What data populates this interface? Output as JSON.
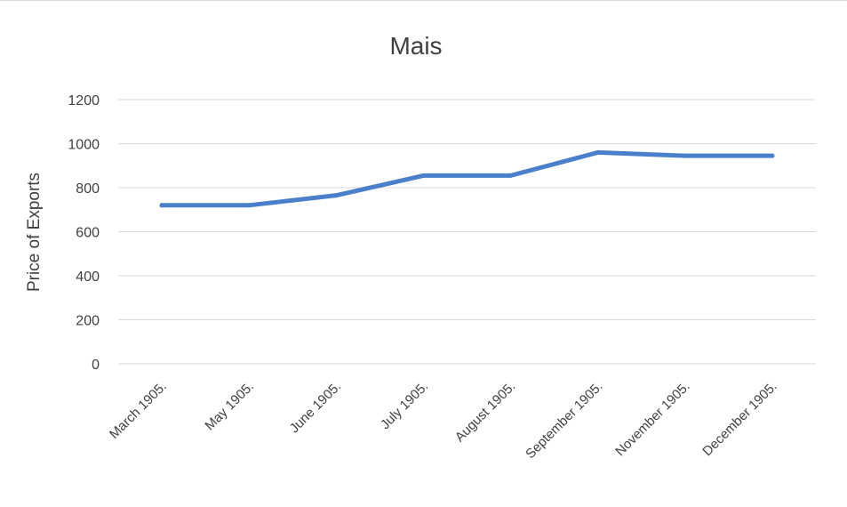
{
  "chart_data": {
    "type": "line",
    "title": "Mais",
    "ylabel": "Price of Exports",
    "xlabel": "",
    "categories": [
      "March 1905.",
      "May 1905.",
      "June 1905.",
      "July 1905.",
      "August 1905.",
      "September 1905.",
      "November 1905.",
      "December 1905."
    ],
    "series": [
      {
        "values": [
          720,
          720,
          765,
          855,
          855,
          960,
          945,
          945
        ],
        "color": "#4a7fcc"
      }
    ],
    "ylim": [
      0,
      1200
    ],
    "yticks": [
      "0",
      "200",
      "400",
      "600",
      "800",
      "1000",
      "1200"
    ],
    "ytick_values": [
      0,
      200,
      400,
      600,
      800,
      1000,
      1200
    ],
    "grid": true,
    "legend": "none"
  }
}
